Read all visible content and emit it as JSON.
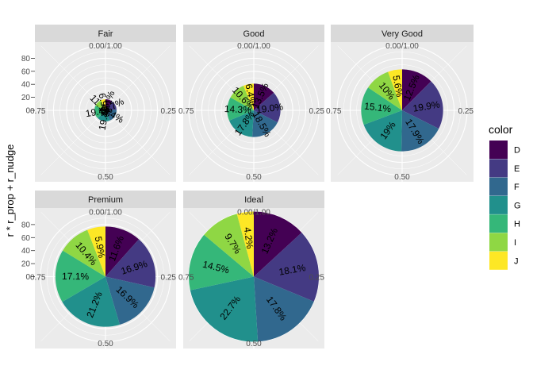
{
  "chart_data": {
    "type": "pie",
    "coord": "polar",
    "ylabel": "r * r_prop + r_nudge",
    "y_ticks": [
      0,
      20,
      40,
      60,
      80
    ],
    "ylim": [
      0,
      100
    ],
    "angle_ticks": [
      "0.00/1.00",
      "0.25",
      "0.50",
      "0.75"
    ],
    "grid": true,
    "legend": {
      "title": "color",
      "position": "right",
      "categories": [
        "D",
        "E",
        "F",
        "G",
        "H",
        "I",
        "J"
      ],
      "colors": [
        "#440154",
        "#443A83",
        "#31688E",
        "#21908C",
        "#35B779",
        "#8FD744",
        "#FDE725"
      ]
    },
    "panels": [
      {
        "name": "Fair",
        "radius": 17,
        "percent_labels": [
          "10.1%",
          "13.7%",
          "19.4%",
          "19.4%",
          "19.4%",
          "11.1%",
          "6.9%"
        ]
      },
      {
        "name": "Good",
        "radius": 41,
        "percent_labels": [
          "13.5%",
          "19.0%",
          "18.5%",
          "17.8%",
          "14.3%",
          "10.6%",
          "6.4%"
        ]
      },
      {
        "name": "Very Good",
        "radius": 63,
        "percent_labels": [
          "12.5%",
          "19.9%",
          "17.9%",
          "19%",
          "15.1%",
          "10%",
          "5.6%"
        ]
      },
      {
        "name": "Premium",
        "radius": 77,
        "percent_labels": [
          "11.6%",
          "16.9%",
          "16.9%",
          "21.2%",
          "17.1%",
          "10.4%",
          "5.9%"
        ]
      },
      {
        "name": "Ideal",
        "radius": 100,
        "percent_labels": [
          "13.2%",
          "18.1%",
          "17.8%",
          "22.7%",
          "14.5%",
          "9.7%",
          "4.2%"
        ]
      }
    ]
  }
}
